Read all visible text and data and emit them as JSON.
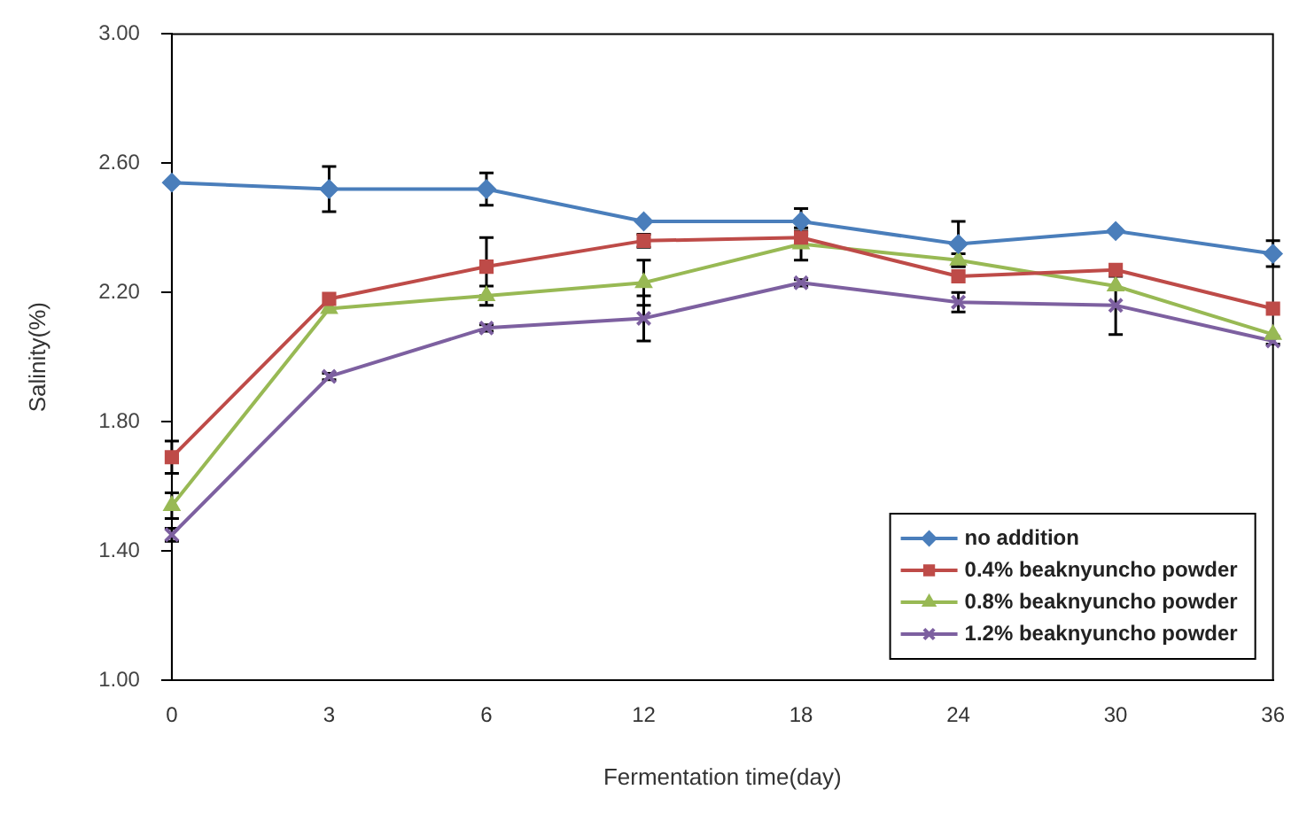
{
  "chart_data": {
    "type": "line",
    "xlabel": "Fermentation time(day)",
    "ylabel": "Salinity(%)",
    "categories": [
      "0",
      "3",
      "6",
      "12",
      "18",
      "24",
      "30",
      "36"
    ],
    "ylim": [
      1,
      3
    ],
    "yticks": [
      {
        "value": 1,
        "label": "1.00"
      },
      {
        "value": 1.4,
        "label": "1.40"
      },
      {
        "value": 1.8,
        "label": "1.80"
      },
      {
        "value": 2.2,
        "label": "2.20"
      },
      {
        "value": 2.6,
        "label": "2.60"
      },
      {
        "value": 3,
        "label": "3.00"
      }
    ],
    "grid": false,
    "legend": "bottom right",
    "line_style": "solid",
    "series": [
      {
        "name": "no addition",
        "color": "#4a7ebb",
        "marker": "diamond",
        "values": [
          2.54,
          2.52,
          2.52,
          2.42,
          2.42,
          2.35,
          2.39,
          2.32
        ],
        "errors": [
          null,
          0.07,
          0.05,
          null,
          0.04,
          0.07,
          null,
          0.04
        ]
      },
      {
        "name": "0.4% beaknyuncho powder",
        "color": "#be4b48",
        "marker": "square",
        "values": [
          1.69,
          2.18,
          2.28,
          2.36,
          2.37,
          2.25,
          2.27,
          2.15
        ],
        "errors": [
          0.05,
          null,
          0.09,
          0.02,
          0.02,
          null,
          null,
          null
        ]
      },
      {
        "name": "0.8% beaknyuncho powder",
        "color": "#98b954",
        "marker": "triangle",
        "values": [
          1.54,
          2.15,
          2.19,
          2.23,
          2.35,
          2.3,
          2.22,
          2.07
        ],
        "errors": [
          0.04,
          null,
          0.03,
          0.07,
          0.05,
          0.02,
          null,
          null
        ]
      },
      {
        "name": "1.2% beaknyuncho powder",
        "color": "#7d60a0",
        "marker": "cross",
        "values": [
          1.45,
          1.94,
          2.09,
          2.12,
          2.23,
          2.17,
          2.16,
          2.05
        ],
        "errors": [
          0.02,
          0.01,
          0.01,
          0.07,
          0.01,
          0.03,
          0.09,
          0.01
        ]
      }
    ]
  }
}
